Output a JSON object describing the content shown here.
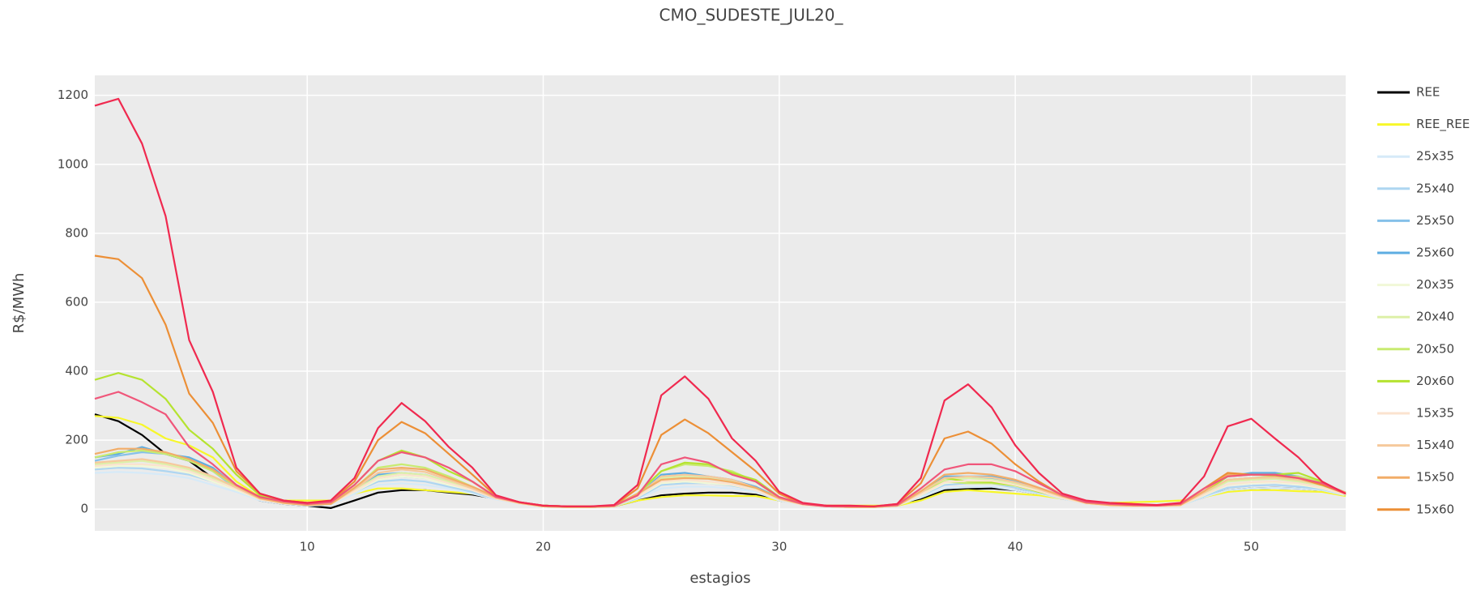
{
  "chart_data": {
    "type": "line",
    "title": "CMO_SUDESTE_JUL20_",
    "x_label": "estagios",
    "y_label": "R$/MWh",
    "x": [
      1,
      2,
      3,
      4,
      5,
      6,
      7,
      8,
      9,
      10,
      11,
      12,
      13,
      14,
      15,
      16,
      17,
      18,
      19,
      20,
      21,
      22,
      23,
      24,
      25,
      26,
      27,
      28,
      29,
      30,
      31,
      32,
      33,
      34,
      35,
      36,
      37,
      38,
      39,
      40,
      41,
      42,
      43,
      44,
      45,
      46,
      47,
      48,
      49,
      50,
      51,
      52,
      53,
      54
    ],
    "xlim": [
      1,
      54
    ],
    "xticks": [
      10,
      20,
      30,
      40,
      50
    ],
    "ylim": [
      -63,
      1258
    ],
    "yticks": [
      0,
      200,
      400,
      600,
      800,
      1000,
      1200
    ],
    "grid": true,
    "legend": "right",
    "series": [
      {
        "name": "REE",
        "color": "#000000",
        "values": [
          275,
          255,
          215,
          160,
          140,
          90,
          60,
          25,
          15,
          10,
          3,
          25,
          48,
          55,
          55,
          48,
          42,
          30,
          18,
          10,
          8,
          6,
          8,
          25,
          40,
          45,
          48,
          48,
          42,
          25,
          15,
          8,
          8,
          8,
          10,
          28,
          55,
          58,
          60,
          55,
          45,
          30,
          18,
          12,
          10,
          10,
          12,
          35,
          55,
          60,
          62,
          60,
          55,
          40
        ]
      },
      {
        "name": "REE_REE",
        "color": "#f7f72a",
        "values": [
          270,
          265,
          245,
          205,
          185,
          150,
          80,
          35,
          25,
          25,
          25,
          45,
          60,
          60,
          55,
          50,
          45,
          30,
          18,
          10,
          8,
          8,
          8,
          25,
          35,
          40,
          40,
          38,
          38,
          25,
          15,
          10,
          10,
          10,
          10,
          25,
          50,
          55,
          50,
          45,
          40,
          30,
          20,
          18,
          20,
          22,
          25,
          35,
          50,
          55,
          55,
          52,
          50,
          38
        ]
      },
      {
        "name": "25x35",
        "color": "#d6eaf8",
        "values": [
          105,
          108,
          105,
          100,
          90,
          70,
          50,
          25,
          15,
          10,
          12,
          45,
          70,
          75,
          70,
          60,
          45,
          28,
          15,
          8,
          6,
          6,
          8,
          30,
          60,
          65,
          65,
          60,
          50,
          25,
          12,
          8,
          6,
          6,
          10,
          35,
          60,
          65,
          65,
          55,
          45,
          30,
          15,
          10,
          8,
          8,
          10,
          35,
          55,
          60,
          62,
          60,
          55,
          40
        ]
      },
      {
        "name": "25x40",
        "color": "#aed6f1",
        "values": [
          115,
          120,
          118,
          110,
          100,
          80,
          55,
          28,
          16,
          12,
          14,
          50,
          80,
          85,
          80,
          65,
          50,
          30,
          16,
          8,
          6,
          6,
          8,
          32,
          70,
          75,
          75,
          68,
          55,
          28,
          12,
          8,
          6,
          6,
          10,
          40,
          70,
          75,
          75,
          62,
          48,
          32,
          16,
          10,
          8,
          8,
          10,
          38,
          62,
          68,
          70,
          65,
          58,
          42
        ]
      },
      {
        "name": "25x50",
        "color": "#85c1e9",
        "values": [
          140,
          155,
          165,
          160,
          145,
          110,
          60,
          30,
          18,
          12,
          15,
          55,
          90,
          95,
          90,
          75,
          55,
          32,
          18,
          8,
          6,
          6,
          8,
          35,
          90,
          95,
          90,
          80,
          60,
          30,
          14,
          8,
          6,
          6,
          10,
          45,
          85,
          90,
          90,
          75,
          55,
          35,
          18,
          12,
          10,
          10,
          12,
          45,
          85,
          90,
          95,
          85,
          70,
          45
        ]
      },
      {
        "name": "25x60",
        "color": "#5dade2",
        "values": [
          150,
          160,
          180,
          160,
          150,
          120,
          65,
          32,
          18,
          12,
          15,
          60,
          100,
          105,
          100,
          80,
          60,
          35,
          18,
          8,
          6,
          6,
          8,
          40,
          100,
          105,
          95,
          85,
          65,
          32,
          14,
          8,
          6,
          6,
          10,
          50,
          95,
          95,
          95,
          80,
          60,
          38,
          18,
          12,
          10,
          10,
          12,
          50,
          95,
          105,
          105,
          95,
          75,
          48
        ]
      },
      {
        "name": "20x35",
        "color": "#f1f8d8",
        "values": [
          120,
          125,
          125,
          120,
          105,
          80,
          55,
          28,
          16,
          12,
          14,
          50,
          85,
          95,
          90,
          70,
          55,
          30,
          16,
          8,
          6,
          6,
          8,
          35,
          75,
          80,
          75,
          70,
          55,
          28,
          12,
          8,
          6,
          6,
          10,
          40,
          75,
          80,
          80,
          68,
          50,
          32,
          16,
          10,
          8,
          8,
          10,
          40,
          70,
          75,
          78,
          72,
          60,
          42
        ]
      },
      {
        "name": "20x40",
        "color": "#ddf0a8",
        "values": [
          130,
          135,
          140,
          130,
          115,
          90,
          60,
          30,
          18,
          12,
          15,
          55,
          95,
          105,
          100,
          80,
          58,
          32,
          18,
          8,
          6,
          6,
          8,
          38,
          90,
          95,
          90,
          80,
          60,
          30,
          14,
          8,
          6,
          6,
          10,
          45,
          85,
          90,
          85,
          75,
          55,
          35,
          18,
          12,
          10,
          10,
          12,
          45,
          80,
          85,
          88,
          80,
          68,
          45
        ]
      },
      {
        "name": "20x50",
        "color": "#c8eb70",
        "values": [
          150,
          165,
          170,
          160,
          140,
          110,
          65,
          32,
          18,
          12,
          15,
          60,
          120,
          130,
          120,
          95,
          65,
          35,
          18,
          8,
          6,
          6,
          8,
          42,
          110,
          130,
          125,
          110,
          80,
          32,
          14,
          8,
          6,
          6,
          10,
          50,
          80,
          75,
          75,
          68,
          50,
          35,
          18,
          12,
          10,
          10,
          12,
          50,
          85,
          90,
          95,
          95,
          78,
          42
        ]
      },
      {
        "name": "20x60",
        "color": "#b5e330",
        "values": [
          375,
          395,
          375,
          320,
          230,
          175,
          100,
          40,
          25,
          18,
          20,
          70,
          140,
          170,
          150,
          110,
          80,
          35,
          18,
          10,
          8,
          8,
          10,
          45,
          110,
          135,
          130,
          105,
          85,
          35,
          15,
          8,
          8,
          8,
          12,
          50,
          90,
          80,
          78,
          70,
          50,
          35,
          20,
          12,
          12,
          10,
          14,
          50,
          95,
          100,
          100,
          105,
          80,
          40
        ]
      },
      {
        "name": "15x35",
        "color": "#fbe3cf",
        "values": [
          125,
          130,
          130,
          125,
          110,
          85,
          58,
          28,
          16,
          12,
          14,
          52,
          90,
          100,
          95,
          75,
          55,
          30,
          16,
          8,
          6,
          6,
          8,
          36,
          80,
          85,
          80,
          72,
          55,
          28,
          12,
          8,
          6,
          6,
          10,
          42,
          78,
          82,
          82,
          70,
          52,
          32,
          16,
          10,
          8,
          8,
          10,
          42,
          72,
          78,
          80,
          75,
          62,
          42
        ]
      },
      {
        "name": "15x40",
        "color": "#f6c99c",
        "values": [
          135,
          140,
          145,
          135,
          120,
          95,
          62,
          30,
          18,
          12,
          15,
          58,
          105,
          115,
          108,
          85,
          60,
          32,
          18,
          8,
          6,
          6,
          8,
          40,
          95,
          100,
          95,
          85,
          62,
          30,
          14,
          8,
          6,
          6,
          10,
          48,
          90,
          95,
          92,
          78,
          58,
          36,
          18,
          12,
          10,
          10,
          12,
          48,
          85,
          90,
          92,
          85,
          70,
          46
        ]
      },
      {
        "name": "15x50",
        "color": "#f2ad68",
        "values": [
          160,
          175,
          175,
          165,
          145,
          115,
          68,
          32,
          18,
          12,
          15,
          62,
          115,
          120,
          115,
          90,
          65,
          35,
          18,
          8,
          6,
          6,
          8,
          45,
          85,
          90,
          88,
          78,
          62,
          32,
          14,
          8,
          6,
          6,
          10,
          52,
          100,
          105,
          100,
          85,
          62,
          38,
          18,
          12,
          10,
          10,
          12,
          52,
          100,
          100,
          100,
          90,
          75,
          48
        ]
      },
      {
        "name": "15x60",
        "color": "#ec8f36",
        "values": [
          735,
          725,
          670,
          535,
          335,
          250,
          110,
          45,
          25,
          18,
          22,
          80,
          200,
          253,
          220,
          160,
          100,
          38,
          20,
          10,
          8,
          8,
          10,
          60,
          215,
          260,
          220,
          165,
          110,
          45,
          15,
          10,
          8,
          8,
          15,
          75,
          205,
          225,
          190,
          130,
          80,
          40,
          20,
          15,
          12,
          10,
          15,
          60,
          105,
          100,
          98,
          90,
          70,
          45
        ]
      },
      {
        "color": "#f0567a",
        "values": [
          320,
          340,
          310,
          275,
          180,
          130,
          70,
          35,
          22,
          15,
          20,
          70,
          140,
          165,
          150,
          120,
          80,
          35,
          20,
          10,
          8,
          8,
          10,
          40,
          130,
          150,
          135,
          100,
          80,
          35,
          15,
          8,
          8,
          8,
          12,
          60,
          115,
          130,
          130,
          110,
          75,
          40,
          20,
          15,
          12,
          10,
          15,
          60,
          95,
          100,
          100,
          90,
          75,
          45
        ]
      },
      {
        "color": "#f0294f",
        "values": [
          1170,
          1190,
          1060,
          850,
          490,
          340,
          120,
          45,
          25,
          18,
          25,
          90,
          235,
          308,
          255,
          180,
          120,
          40,
          20,
          10,
          8,
          8,
          12,
          70,
          330,
          385,
          320,
          205,
          140,
          50,
          18,
          10,
          10,
          8,
          15,
          90,
          315,
          362,
          295,
          185,
          105,
          45,
          25,
          18,
          15,
          12,
          18,
          95,
          240,
          262,
          205,
          150,
          80,
          45
        ]
      }
    ]
  }
}
